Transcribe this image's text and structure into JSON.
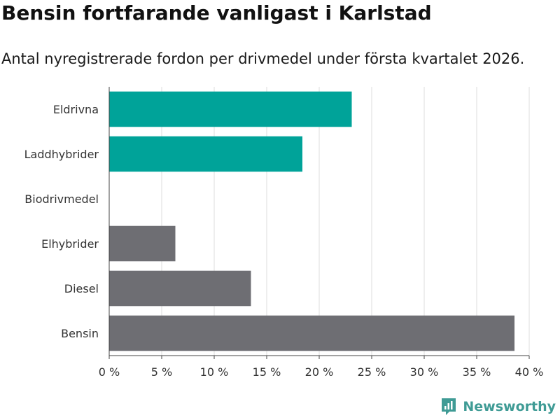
{
  "chart_data": {
    "type": "bar",
    "orientation": "horizontal",
    "title": "Bensin fortfarande vanligast i Karlstad",
    "subtitle": "Antal nyregistrerade fordon per drivmedel under första kvartalet 2026.",
    "categories": [
      "Eldrivna",
      "Laddhybrider",
      "Biodrivmedel",
      "Elhybrider",
      "Diesel",
      "Bensin"
    ],
    "values": [
      23.1,
      18.4,
      0,
      6.3,
      13.5,
      38.6
    ],
    "bar_colors": [
      "#00a399",
      "#00a399",
      "#6e6e73",
      "#6e6e73",
      "#6e6e73",
      "#6e6e73"
    ],
    "x_ticks": [
      0,
      5,
      10,
      15,
      20,
      25,
      30,
      35,
      40
    ],
    "tick_suffix": " %",
    "xlim": [
      0,
      40
    ],
    "xlabel": "",
    "ylabel": "",
    "grid": true
  },
  "brand": {
    "name": "Newsworthy",
    "color": "#3f9b95"
  }
}
